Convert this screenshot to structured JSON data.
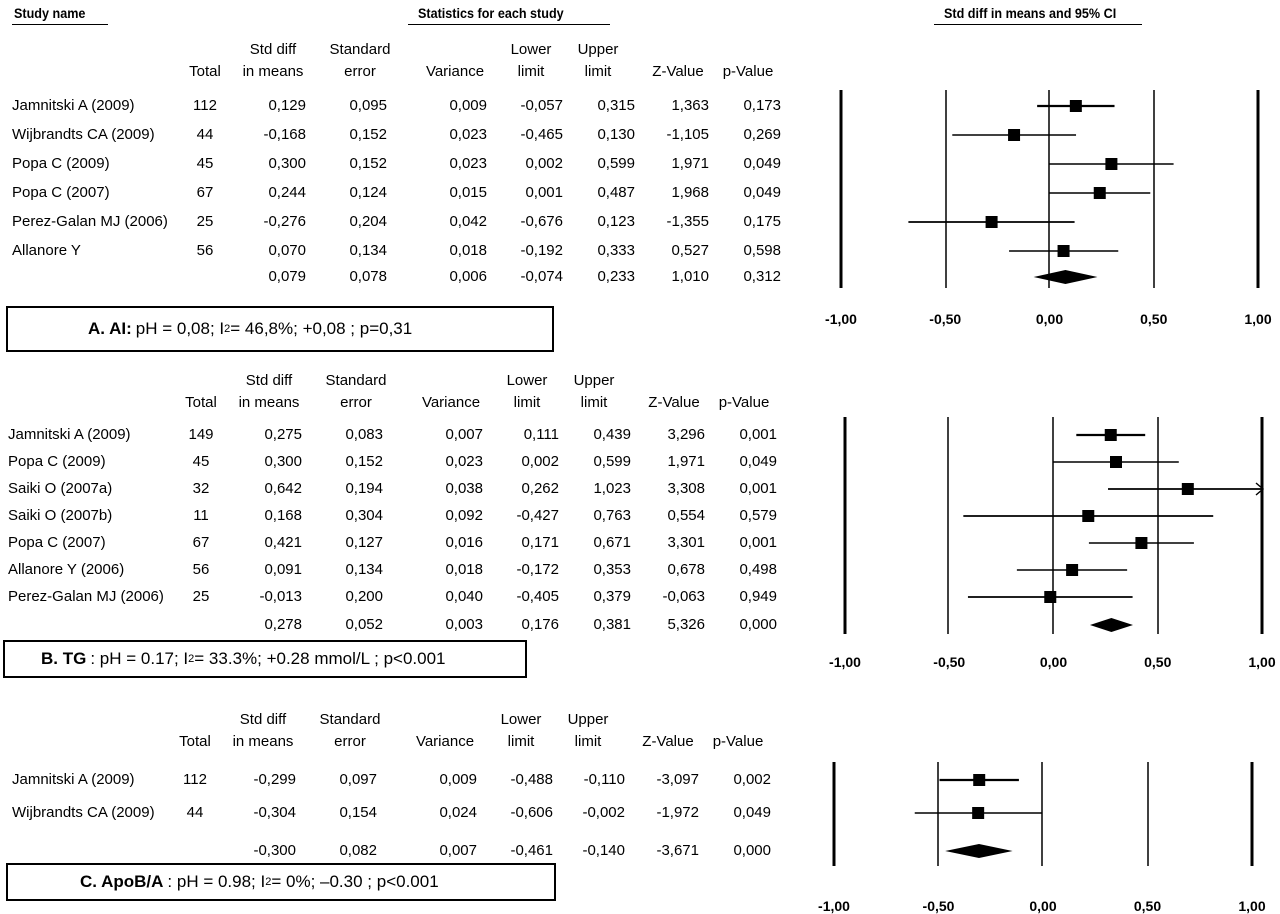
{
  "headers": {
    "study_name": "Study name",
    "statistics": "Statistics for each study",
    "forest": "Std diff in means and 95%  CI"
  },
  "columns": [
    {
      "line1": "",
      "line2": "Total"
    },
    {
      "line1": "Std diff",
      "line2": "in means"
    },
    {
      "line1": "Standard",
      "line2": "error"
    },
    {
      "line1": "",
      "line2": "Variance"
    },
    {
      "line1": "Lower",
      "line2": "limit"
    },
    {
      "line1": "Upper",
      "line2": "limit"
    },
    {
      "line1": "",
      "line2": "Z-Value"
    },
    {
      "line1": "",
      "line2": "p-Value"
    }
  ],
  "panels": [
    {
      "label": "A. AI:",
      "summary_parts": [
        "pH = 0,08; I",
        "2",
        " = 46,8%;  +0,08 ; p=0,31"
      ],
      "rows": [
        {
          "name": "Jamnitski A (2009)",
          "total": "112",
          "smd": "0,129",
          "se": "0,095",
          "var": "0,009",
          "lower": "-0,057",
          "upper": "0,315",
          "z": "1,363",
          "p": "0,173"
        },
        {
          "name": "Wijbrandts CA (2009)",
          "total": "44",
          "smd": "-0,168",
          "se": "0,152",
          "var": "0,023",
          "lower": "-0,465",
          "upper": "0,130",
          "z": "-1,105",
          "p": "0,269"
        },
        {
          "name": "Popa C (2009)",
          "total": "45",
          "smd": "0,300",
          "se": "0,152",
          "var": "0,023",
          "lower": "0,002",
          "upper": "0,599",
          "z": "1,971",
          "p": "0,049"
        },
        {
          "name": "Popa C (2007)",
          "total": "67",
          "smd": "0,244",
          "se": "0,124",
          "var": "0,015",
          "lower": "0,001",
          "upper": "0,487",
          "z": "1,968",
          "p": "0,049"
        },
        {
          "name": "Perez-Galan MJ (2006)",
          "total": "25",
          "smd": "-0,276",
          "se": "0,204",
          "var": "0,042",
          "lower": "-0,676",
          "upper": "0,123",
          "z": "-1,355",
          "p": "0,175"
        },
        {
          "name": "Allanore Y",
          "total": "56",
          "smd": "0,070",
          "se": "0,134",
          "var": "0,018",
          "lower": "-0,192",
          "upper": "0,333",
          "z": "0,527",
          "p": "0,598"
        }
      ],
      "pooled": {
        "smd": "0,079",
        "se": "0,078",
        "var": "0,006",
        "lower": "-0,074",
        "upper": "0,233",
        "z": "1,010",
        "p": "0,312"
      },
      "ticks": [
        "-1,00",
        "-0,50",
        "0,00",
        "0,50",
        "1,00"
      ]
    },
    {
      "label": "B. TG",
      "summary_parts": [
        ": pH = 0.17; I",
        "2",
        " = 33.3%; +0.28 mmol/L ; p<0.001"
      ],
      "rows": [
        {
          "name": "Jamnitski A (2009)",
          "total": "149",
          "smd": "0,275",
          "se": "0,083",
          "var": "0,007",
          "lower": "0,111",
          "upper": "0,439",
          "z": "3,296",
          "p": "0,001"
        },
        {
          "name": "Popa C (2009)",
          "total": "45",
          "smd": "0,300",
          "se": "0,152",
          "var": "0,023",
          "lower": "0,002",
          "upper": "0,599",
          "z": "1,971",
          "p": "0,049"
        },
        {
          "name": "Saiki O (2007a)",
          "total": "32",
          "smd": "0,642",
          "se": "0,194",
          "var": "0,038",
          "lower": "0,262",
          "upper": "1,023",
          "z": "3,308",
          "p": "0,001"
        },
        {
          "name": "Saiki O (2007b)",
          "total": "11",
          "smd": "0,168",
          "se": "0,304",
          "var": "0,092",
          "lower": "-0,427",
          "upper": "0,763",
          "z": "0,554",
          "p": "0,579"
        },
        {
          "name": "Popa C (2007)",
          "total": "67",
          "smd": "0,421",
          "se": "0,127",
          "var": "0,016",
          "lower": "0,171",
          "upper": "0,671",
          "z": "3,301",
          "p": "0,001"
        },
        {
          "name": "Allanore Y (2006)",
          "total": "56",
          "smd": "0,091",
          "se": "0,134",
          "var": "0,018",
          "lower": "-0,172",
          "upper": "0,353",
          "z": "0,678",
          "p": "0,498"
        },
        {
          "name": "Perez-Galan MJ (2006)",
          "total": "25",
          "smd": "-0,013",
          "se": "0,200",
          "var": "0,040",
          "lower": "-0,405",
          "upper": "0,379",
          "z": "-0,063",
          "p": "0,949"
        }
      ],
      "pooled": {
        "smd": "0,278",
        "se": "0,052",
        "var": "0,003",
        "lower": "0,176",
        "upper": "0,381",
        "z": "5,326",
        "p": "0,000"
      },
      "ticks": [
        "-1,00",
        "-0,50",
        "0,00",
        "0,50",
        "1,00"
      ]
    },
    {
      "label": "C. ApoB/A",
      "summary_parts": [
        ":  pH = 0.98; I",
        "2",
        " = 0%; –0.30 ; p<0.001"
      ],
      "rows": [
        {
          "name": "Jamnitski A (2009)",
          "total": "112",
          "smd": "-0,299",
          "se": "0,097",
          "var": "0,009",
          "lower": "-0,488",
          "upper": "-0,110",
          "z": "-3,097",
          "p": "0,002"
        },
        {
          "name": "Wijbrandts CA (2009)",
          "total": "44",
          "smd": "-0,304",
          "se": "0,154",
          "var": "0,024",
          "lower": "-0,606",
          "upper": "-0,002",
          "z": "-1,972",
          "p": "0,049"
        }
      ],
      "pooled": {
        "smd": "-0,300",
        "se": "0,082",
        "var": "0,007",
        "lower": "-0,461",
        "upper": "-0,140",
        "z": "-3,671",
        "p": "0,000"
      },
      "ticks": [
        "-1,00",
        "-0,50",
        "0,00",
        "0,50",
        "1,00"
      ]
    }
  ],
  "chart_data": [
    {
      "type": "forest",
      "title": "Std diff in means and 95%  CI",
      "xlim": [
        -1,
        1
      ],
      "series": [
        {
          "name": "Jamnitski A (2009)",
          "smd": 0.129,
          "lower": -0.057,
          "upper": 0.315,
          "weight": 0.095
        },
        {
          "name": "Wijbrandts CA (2009)",
          "smd": -0.168,
          "lower": -0.465,
          "upper": 0.13,
          "weight": 0.152
        },
        {
          "name": "Popa C (2009)",
          "smd": 0.3,
          "lower": 0.002,
          "upper": 0.599,
          "weight": 0.152
        },
        {
          "name": "Popa C (2007)",
          "smd": 0.244,
          "lower": 0.001,
          "upper": 0.487,
          "weight": 0.124
        },
        {
          "name": "Perez-Galan MJ (2006)",
          "smd": -0.276,
          "lower": -0.676,
          "upper": 0.123,
          "weight": 0.204
        },
        {
          "name": "Allanore Y",
          "smd": 0.07,
          "lower": -0.192,
          "upper": 0.333,
          "weight": 0.134
        }
      ],
      "pooled": {
        "smd": 0.079,
        "lower": -0.074,
        "upper": 0.233
      }
    },
    {
      "type": "forest",
      "xlim": [
        -1,
        1
      ],
      "series": [
        {
          "name": "Jamnitski A (2009)",
          "smd": 0.275,
          "lower": 0.111,
          "upper": 0.439,
          "weight": 0.083
        },
        {
          "name": "Popa C (2009)",
          "smd": 0.3,
          "lower": 0.002,
          "upper": 0.599,
          "weight": 0.152
        },
        {
          "name": "Saiki O (2007a)",
          "smd": 0.642,
          "lower": 0.262,
          "upper": 1.023,
          "weight": 0.194
        },
        {
          "name": "Saiki O (2007b)",
          "smd": 0.168,
          "lower": -0.427,
          "upper": 0.763,
          "weight": 0.304
        },
        {
          "name": "Popa C (2007)",
          "smd": 0.421,
          "lower": 0.171,
          "upper": 0.671,
          "weight": 0.127
        },
        {
          "name": "Allanore Y (2006)",
          "smd": 0.091,
          "lower": -0.172,
          "upper": 0.353,
          "weight": 0.134
        },
        {
          "name": "Perez-Galan MJ (2006)",
          "smd": -0.013,
          "lower": -0.405,
          "upper": 0.379,
          "weight": 0.2
        }
      ],
      "pooled": {
        "smd": 0.278,
        "lower": 0.176,
        "upper": 0.381
      }
    },
    {
      "type": "forest",
      "xlim": [
        -1,
        1
      ],
      "series": [
        {
          "name": "Jamnitski A (2009)",
          "smd": -0.299,
          "lower": -0.488,
          "upper": -0.11,
          "weight": 0.097
        },
        {
          "name": "Wijbrandts CA (2009)",
          "smd": -0.304,
          "lower": -0.606,
          "upper": -0.002,
          "weight": 0.154
        }
      ],
      "pooled": {
        "smd": -0.3,
        "lower": -0.461,
        "upper": -0.14
      }
    }
  ]
}
